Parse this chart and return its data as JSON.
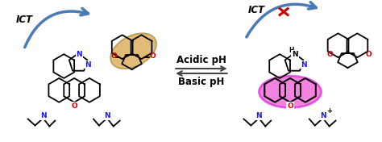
{
  "background_color": "#ffffff",
  "arrow_color": "#4a7ab5",
  "x_color": "#cc0000",
  "acidic_text": "Acidic pH",
  "basic_text": "Basic pH",
  "ict_text": "ICT",
  "highlight_left_color": "#c8860a",
  "highlight_right_color": "#e820c8",
  "o_color": "#cc0000",
  "n_color": "#1a1aee",
  "fig_width": 4.74,
  "fig_height": 1.76,
  "dpi": 100
}
